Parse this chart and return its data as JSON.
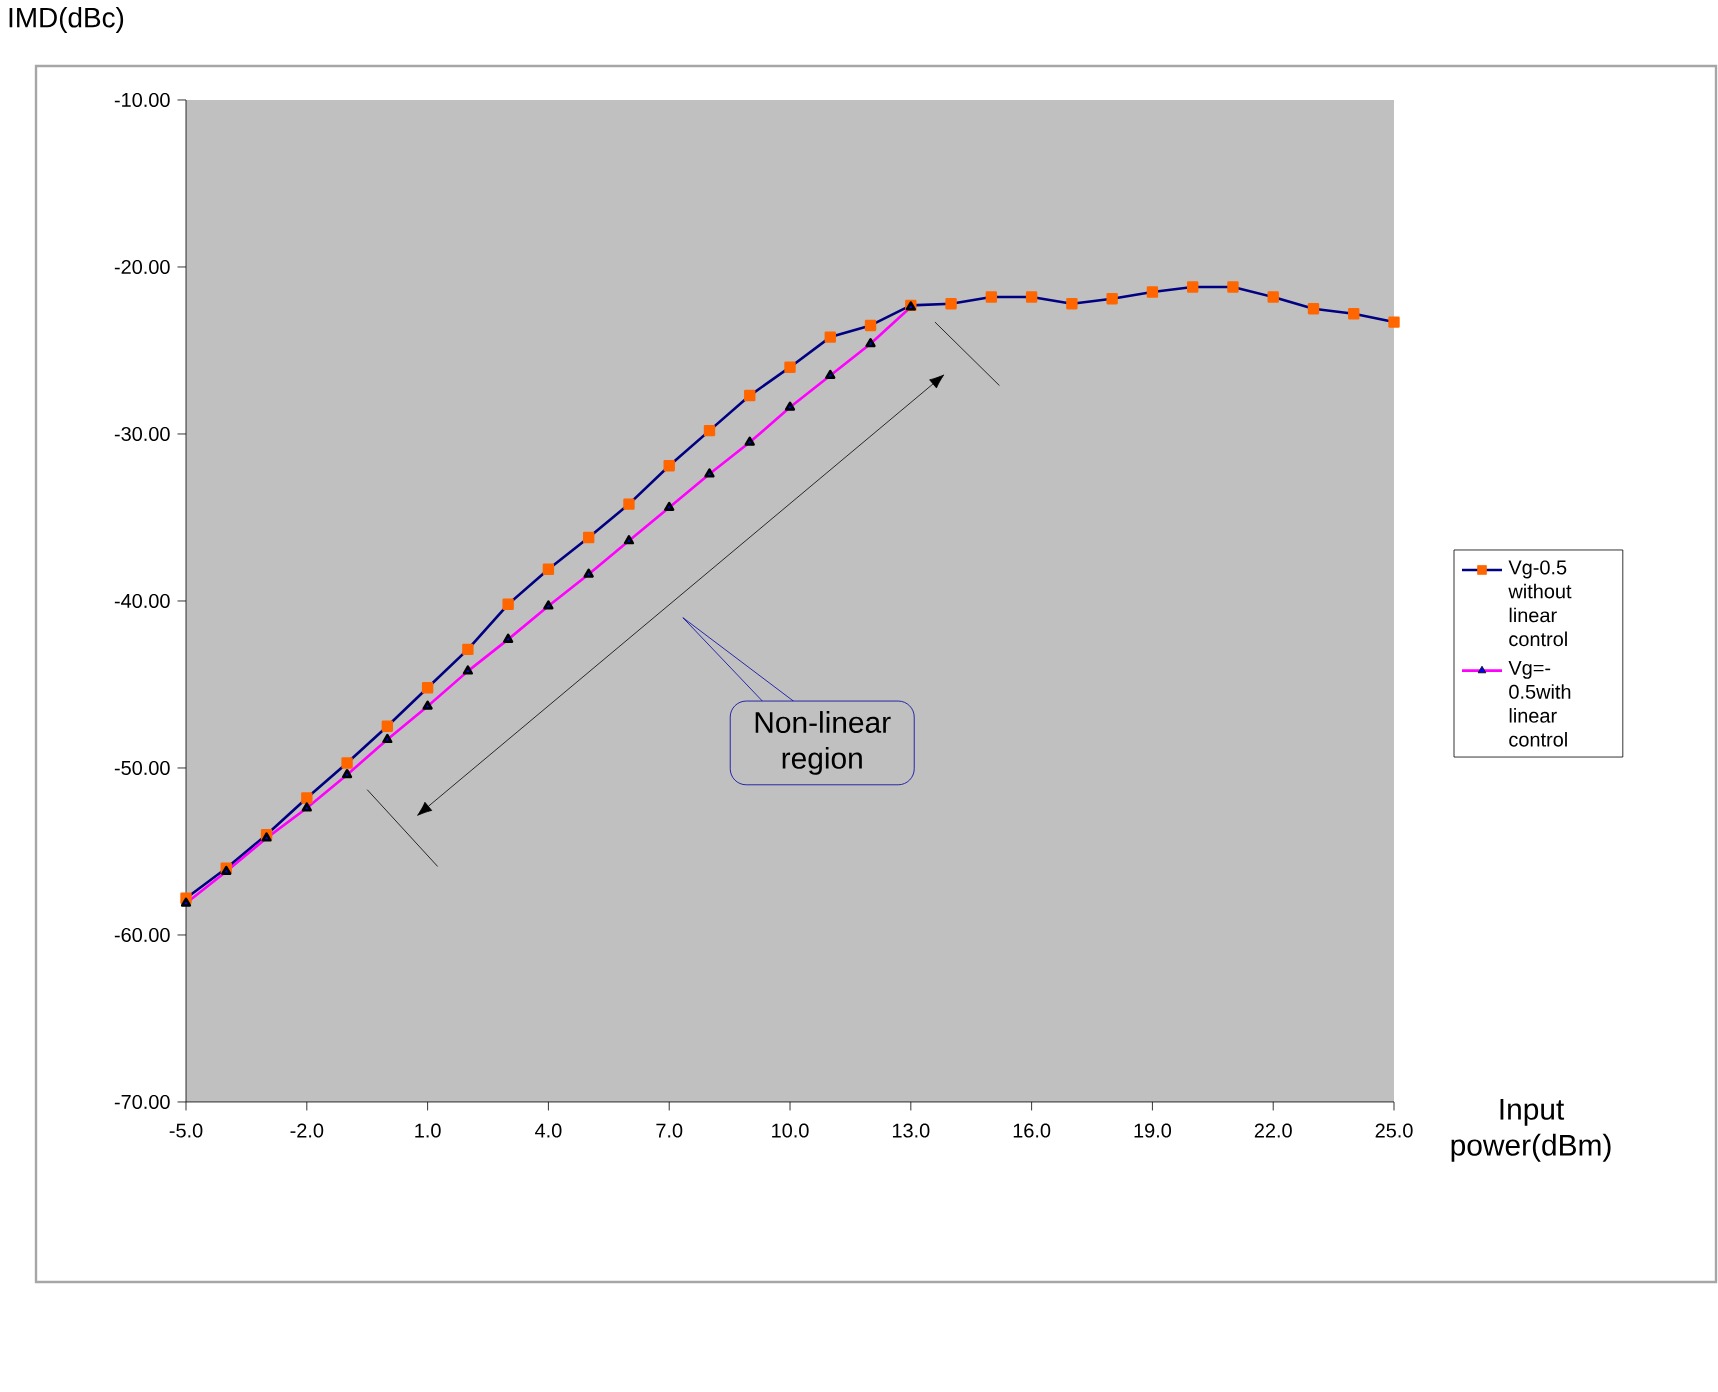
{
  "chart_data": {
    "type": "line",
    "ylabel": "IMD(dBc)",
    "xlabel": "Input power(dBm)",
    "x": [
      -5,
      -4,
      -3,
      -2,
      -1,
      0,
      1,
      2,
      3,
      4,
      5,
      6,
      7,
      8,
      9,
      10,
      11,
      12,
      13,
      14,
      15,
      16,
      17,
      18,
      19,
      20,
      21,
      22,
      23,
      24,
      25
    ],
    "series": [
      {
        "name": "Vg-0.5 without linear control",
        "color": "#000080",
        "marker": "square",
        "values": [
          -57.8,
          -56.0,
          -54.0,
          -51.8,
          -49.7,
          -47.5,
          -45.2,
          -42.9,
          -40.2,
          -38.1,
          -36.2,
          -34.2,
          -31.9,
          -29.8,
          -27.7,
          -26.0,
          -24.2,
          -23.5,
          -22.3,
          -22.2,
          -21.8,
          -21.8,
          -22.2,
          -21.9,
          -21.5,
          -21.2,
          -21.2,
          -21.8,
          -22.5,
          -22.8,
          -23.3
        ]
      },
      {
        "name": "Vg=-0.5with linear control",
        "color": "#ff00ff",
        "marker": "triangle",
        "values": [
          -58.1,
          -56.2,
          -54.2,
          -52.4,
          -50.4,
          -48.3,
          -46.3,
          -44.2,
          -42.3,
          -40.3,
          -38.4,
          -36.4,
          -34.4,
          -32.4,
          -30.5,
          -28.4,
          -26.5,
          -24.6,
          -22.4,
          null,
          null,
          null,
          null,
          null,
          null,
          null,
          null,
          null,
          null,
          null,
          null
        ]
      }
    ],
    "xlim": [
      -5,
      25
    ],
    "xticks": [
      {
        "value": -5,
        "label": "-5.0"
      },
      {
        "value": -2,
        "label": "-2.0"
      },
      {
        "value": 1,
        "label": "1.0"
      },
      {
        "value": 4,
        "label": "4.0"
      },
      {
        "value": 7,
        "label": "7.0"
      },
      {
        "value": 10,
        "label": "10.0"
      },
      {
        "value": 13,
        "label": "13.0"
      },
      {
        "value": 16,
        "label": "16.0"
      },
      {
        "value": 19,
        "label": "19.0"
      },
      {
        "value": 22,
        "label": "22.0"
      },
      {
        "value": 25,
        "label": "25.0"
      }
    ],
    "ylim": [
      -70,
      -10
    ],
    "yticks": [
      {
        "value": -70,
        "label": "-70.00"
      },
      {
        "value": -60,
        "label": "-60.00"
      },
      {
        "value": -50,
        "label": "-50.00"
      },
      {
        "value": -40,
        "label": "-40.00"
      },
      {
        "value": -30,
        "label": "-30.00"
      },
      {
        "value": -20,
        "label": "-20.00"
      },
      {
        "value": -10,
        "label": "-10.00"
      }
    ],
    "annotations": [
      "Non-linear region"
    ],
    "legend": "right",
    "grid": false
  }
}
